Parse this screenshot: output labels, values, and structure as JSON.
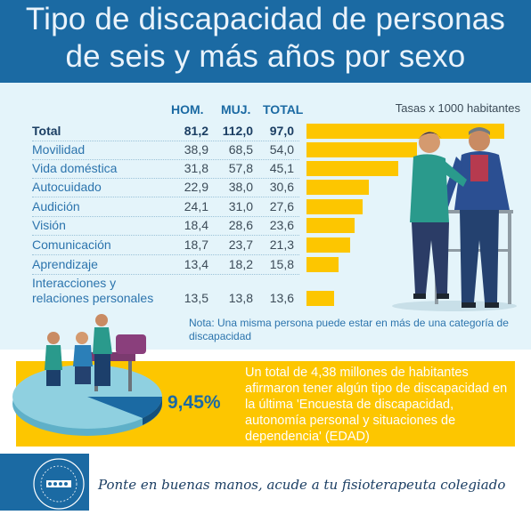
{
  "title": {
    "line1": "Tipo de discapacidad de personas",
    "line2": "de seis y más años por sexo"
  },
  "columns": {
    "men": "HOM.",
    "women": "MUJ.",
    "total": "TOTAL"
  },
  "rate_note": "Tasas x 1000 habitantes",
  "chart_data": {
    "type": "bar",
    "orientation": "horizontal",
    "categories": [
      "Total",
      "Movilidad",
      "Vida doméstica",
      "Autocuidado",
      "Audición",
      "Visión",
      "Comunicación",
      "Aprendizaje",
      "Interacciones y relaciones personales"
    ],
    "category_lines": [
      [
        "Total"
      ],
      [
        "Movilidad"
      ],
      [
        "Vida doméstica"
      ],
      [
        "Autocuidado"
      ],
      [
        "Audición"
      ],
      [
        "Visión"
      ],
      [
        "Comunicación"
      ],
      [
        "Aprendizaje"
      ],
      [
        "Interacciones y",
        "relaciones personales"
      ]
    ],
    "men": [
      "81,2",
      "38,9",
      "31,8",
      "22,9",
      "24,1",
      "18,4",
      "18,7",
      "13,4",
      "13,5"
    ],
    "women": [
      "112,0",
      "68,5",
      "57,8",
      "38,0",
      "31,0",
      "28,6",
      "23,7",
      "18,2",
      "13,8"
    ],
    "total_labels": [
      "97,0",
      "54,0",
      "45,1",
      "30,6",
      "27,6",
      "23,6",
      "21,3",
      "15,8",
      "13,6"
    ],
    "values": [
      97.0,
      54.0,
      45.1,
      30.6,
      27.6,
      23.6,
      21.3,
      15.8,
      13.6
    ],
    "bar_color": "#fdc600",
    "xlim": [
      0,
      97
    ]
  },
  "note": "Nota: Una misma persona puede estar en más de una categoría de discapacidad",
  "highlight": {
    "percent": "9,45%",
    "text": "Un total de 4,38 millones de habitantes afirmaron tener algún tipo de discapacidad en la última 'Encuesta de discapacidad, autonomía personal y situaciones de dependencia' (EDAD)"
  },
  "footer": {
    "slogan": "Ponte en buenas manos, acude a tu fisioterapeuta colegiado"
  },
  "colors": {
    "header": "#1b6aa3",
    "accent": "#fdc600",
    "band": "#e4f4fa"
  }
}
